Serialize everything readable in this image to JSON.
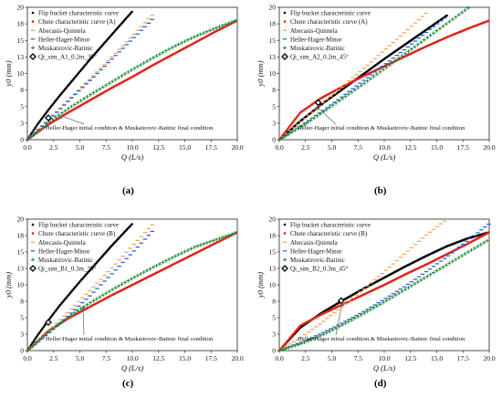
{
  "figure": {
    "panel_labels": [
      "(a)",
      "(b)",
      "(c)",
      "(d)"
    ]
  },
  "colors": {
    "flip": "#000000",
    "chute": "#e2231a",
    "abecasis": "#f2a35c",
    "heller": "#1f5bd1",
    "muskatirovic": "#1f8a3c",
    "qi_sim": "#000000"
  },
  "chart_data": [
    {
      "type": "scatter",
      "panel": "(a)",
      "xlabel": "Q (L/s)",
      "ylabel": "y0 (mm)",
      "xlim": [
        0,
        20
      ],
      "ylim": [
        0,
        20
      ],
      "x_ticks": [
        "0.0",
        "2.5",
        "5.0",
        "7.5",
        "10.0",
        "12.5",
        "15.0",
        "17.5",
        "20.0"
      ],
      "y_ticks": [
        "0",
        "3",
        "5",
        "8",
        "10",
        "13",
        "15",
        "18",
        "20"
      ],
      "grid": false,
      "legend_position": "top-left",
      "annotation": "Heller-Hager initial condition & Muskatirovic-Batinic final condition",
      "annotation_point": [
        3.2,
        3.9
      ],
      "series": [
        {
          "name": "Flip bucket characteristic curve",
          "key": "flip",
          "marker": "dot",
          "x": [
            0,
            1,
            2,
            3,
            4,
            5,
            6,
            7,
            8,
            9,
            10
          ],
          "y": [
            0,
            2.4,
            4.5,
            6.5,
            8.4,
            10.3,
            12.2,
            14.0,
            15.8,
            17.6,
            19.4
          ]
        },
        {
          "name": "Chute characteristic curve (A)",
          "key": "chute",
          "marker": "dot",
          "x": [
            0,
            2,
            4,
            6,
            8,
            10,
            12,
            14,
            16,
            18,
            20
          ],
          "y": [
            0,
            2.3,
            4.2,
            6.0,
            7.8,
            9.5,
            11.3,
            13.0,
            14.7,
            16.4,
            18.0
          ]
        },
        {
          "name": "Abecasis-Quintela",
          "key": "abecasis",
          "marker": "dash",
          "x": [
            0,
            2,
            4,
            6,
            8,
            10,
            12
          ],
          "y": [
            0,
            3.0,
            6.1,
            9.2,
            12.4,
            15.7,
            19.0
          ]
        },
        {
          "name": "Heller-Hager-Minor",
          "key": "heller",
          "marker": "dash",
          "x": [
            0,
            2,
            4,
            6,
            8,
            10,
            12
          ],
          "y": [
            0,
            2.9,
            6.0,
            9.0,
            12.1,
            15.2,
            18.3
          ]
        },
        {
          "name": "Muskatirovic-Batinic",
          "key": "muskatirovic",
          "marker": "plus",
          "x": [
            0,
            2,
            4,
            6,
            8,
            10,
            12,
            14,
            16,
            18,
            20
          ],
          "y": [
            0,
            2.6,
            4.8,
            6.8,
            8.7,
            10.6,
            12.4,
            14.1,
            15.6,
            16.9,
            18.1
          ]
        },
        {
          "name": "Qi_sim_A1_0.2m_30°",
          "key": "qi_sim",
          "marker": "diamond",
          "x": [
            2.0
          ],
          "y": [
            3.3
          ]
        }
      ]
    },
    {
      "type": "scatter",
      "panel": "(b)",
      "xlabel": "Q (L/s)",
      "ylabel": "y0 (mm)",
      "xlim": [
        0,
        20
      ],
      "ylim": [
        0,
        20
      ],
      "x_ticks": [
        "0.0",
        "2.5",
        "5.0",
        "7.5",
        "10.0",
        "12.5",
        "15.0",
        "17.5",
        "20.0"
      ],
      "y_ticks": [
        "0",
        "3",
        "5",
        "8",
        "10",
        "13",
        "15",
        "18",
        "20"
      ],
      "grid": false,
      "legend_position": "top-left",
      "annotation": "Heller-Hager initial condition & Muskatirovic-Batinic final condition",
      "annotation_point": [
        3.6,
        5.2
      ],
      "series": [
        {
          "name": "Flip bucket characteristic curve",
          "key": "flip",
          "marker": "dot",
          "x": [
            0,
            2,
            4,
            6,
            8,
            10,
            12,
            14,
            16
          ],
          "y": [
            0,
            2.8,
            5.3,
            7.6,
            9.9,
            12.2,
            14.4,
            16.6,
            18.8
          ]
        },
        {
          "name": "Chute characteristic curve (A)",
          "key": "chute",
          "marker": "dot",
          "x": [
            0,
            2,
            4,
            6,
            8,
            10,
            12,
            14,
            16,
            18,
            20
          ],
          "y": [
            0,
            4.1,
            6.3,
            8.0,
            9.6,
            11.1,
            12.6,
            14.1,
            15.5,
            16.8,
            18.0
          ]
        },
        {
          "name": "Abecasis-Quintela",
          "key": "abecasis",
          "marker": "dash",
          "x": [
            0,
            2,
            4,
            6,
            8,
            10,
            12,
            14
          ],
          "y": [
            0,
            2.6,
            5.3,
            8.0,
            10.7,
            13.5,
            16.3,
            19.1
          ]
        },
        {
          "name": "Heller-Hager-Minor",
          "key": "heller",
          "marker": "dash",
          "x": [
            0,
            2,
            4,
            6,
            8,
            10,
            12,
            14,
            16
          ],
          "y": [
            0,
            2.0,
            4.2,
            6.5,
            8.9,
            11.3,
            13.7,
            16.2,
            18.7
          ]
        },
        {
          "name": "Muskatirovic-Batinic",
          "key": "muskatirovic",
          "marker": "plus",
          "x": [
            0,
            2,
            4,
            6,
            8,
            10,
            12,
            14,
            16,
            18
          ],
          "y": [
            0,
            1.9,
            4.0,
            6.2,
            8.4,
            10.7,
            13.0,
            15.3,
            17.6,
            19.9
          ]
        },
        {
          "name": "Qi_sim_A2_0.2m_45°",
          "key": "qi_sim",
          "marker": "diamond",
          "x": [
            3.7
          ],
          "y": [
            5.6
          ]
        }
      ]
    },
    {
      "type": "scatter",
      "panel": "(c)",
      "xlabel": "Q (L/s)",
      "ylabel": "y0 (mm)",
      "xlim": [
        0,
        20
      ],
      "ylim": [
        0,
        20
      ],
      "x_ticks": [
        "0.0",
        "2.5",
        "5.0",
        "7.5",
        "10.0",
        "12.5",
        "15.0",
        "17.5",
        "20.0"
      ],
      "y_ticks": [
        "0",
        "3",
        "5",
        "8",
        "10",
        "13",
        "15",
        "18",
        "20"
      ],
      "grid": false,
      "legend_position": "top-left",
      "annotation": "Heller-Hager initial condition & Muskatirovic-Batinic final condition",
      "annotation_point": [
        5.3,
        7.0
      ],
      "series": [
        {
          "name": "Flip bucket characteristic curve",
          "key": "flip",
          "marker": "dot",
          "x": [
            0,
            1,
            2,
            3,
            4,
            5,
            6,
            7,
            8,
            9,
            10
          ],
          "y": [
            0,
            2.4,
            4.6,
            6.7,
            8.6,
            10.5,
            12.3,
            14.1,
            15.9,
            17.6,
            19.3
          ]
        },
        {
          "name": "Chute characteristic curve (B)",
          "key": "chute",
          "marker": "dot",
          "x": [
            0,
            2,
            4,
            6,
            8,
            10,
            12,
            14,
            16,
            18,
            20
          ],
          "y": [
            0,
            3.0,
            5.0,
            6.7,
            8.4,
            10.0,
            11.6,
            13.2,
            14.8,
            16.4,
            18.0
          ]
        },
        {
          "name": "Abecasis-Quintela",
          "key": "abecasis",
          "marker": "dash",
          "x": [
            0,
            2,
            4,
            6,
            8,
            10,
            12
          ],
          "y": [
            0,
            2.9,
            6.0,
            9.2,
            12.5,
            15.9,
            19.3
          ]
        },
        {
          "name": "Heller-Hager-Minor",
          "key": "heller",
          "marker": "dash",
          "x": [
            0,
            2,
            4,
            6,
            8,
            10,
            12
          ],
          "y": [
            0,
            2.6,
            5.4,
            8.4,
            11.6,
            14.9,
            18.3
          ]
        },
        {
          "name": "Muskatirovic-Batinic",
          "key": "muskatirovic",
          "marker": "plus",
          "x": [
            0,
            2,
            4,
            6,
            8,
            10,
            12,
            14,
            16,
            18,
            20
          ],
          "y": [
            0,
            2.8,
            5.2,
            7.3,
            9.2,
            11.0,
            12.7,
            14.3,
            15.8,
            16.9,
            18.0
          ]
        },
        {
          "name": "Qi_sim_B1_0.3m_30°",
          "key": "qi_sim",
          "marker": "diamond",
          "x": [
            2.0
          ],
          "y": [
            4.3
          ]
        }
      ]
    },
    {
      "type": "scatter",
      "panel": "(d)",
      "xlabel": "Q (L/s)",
      "ylabel": "y0 (mm)",
      "xlim": [
        0,
        20
      ],
      "ylim": [
        0,
        20
      ],
      "x_ticks": [
        "0.0",
        "2.5",
        "5.0",
        "7.5",
        "10.0",
        "12.5",
        "15.0",
        "17.5",
        "20.0"
      ],
      "y_ticks": [
        "0",
        "3",
        "5",
        "8",
        "10",
        "13",
        "15",
        "18",
        "20"
      ],
      "grid": false,
      "legend_position": "top-left",
      "annotation": "Heller-Hager initial condition & Muskatirovic-Batinic final condition",
      "annotation_point": [
        6.0,
        7.5
      ],
      "series": [
        {
          "name": "Flip bucket characteristic curve",
          "key": "flip",
          "marker": "dot",
          "x": [
            0,
            2,
            4,
            6,
            8,
            10,
            12,
            14,
            16,
            18,
            20
          ],
          "y": [
            0,
            3.5,
            5.7,
            7.6,
            9.4,
            11.1,
            12.8,
            14.4,
            15.9,
            17.1,
            18.0
          ]
        },
        {
          "name": "Chute characteristic curve (B)",
          "key": "chute",
          "marker": "dot",
          "x": [
            0,
            2,
            4,
            6,
            8,
            10,
            12,
            14,
            16,
            18,
            20
          ],
          "y": [
            0,
            3.8,
            5.5,
            7.0,
            8.5,
            10.0,
            11.6,
            13.1,
            14.7,
            16.3,
            18.0
          ]
        },
        {
          "name": "Abecasis-Quintela",
          "key": "abecasis",
          "marker": "dash",
          "x": [
            0,
            2,
            4,
            6,
            8,
            10,
            12,
            14,
            16
          ],
          "y": [
            0,
            1.9,
            4.2,
            6.7,
            9.3,
            12.0,
            14.8,
            17.6,
            20.0
          ]
        },
        {
          "name": "Heller-Hager-Minor",
          "key": "heller",
          "marker": "dash",
          "x": [
            0,
            2,
            4,
            6,
            8,
            10,
            12,
            14,
            16,
            18,
            20
          ],
          "y": [
            0,
            1.2,
            2.6,
            4.2,
            5.9,
            7.8,
            9.8,
            12.0,
            14.3,
            16.8,
            19.3
          ]
        },
        {
          "name": "Muskatirovic-Batinic",
          "key": "muskatirovic",
          "marker": "plus",
          "x": [
            0,
            2,
            4,
            6,
            8,
            10,
            12,
            14,
            16,
            18,
            20
          ],
          "y": [
            0,
            1.0,
            2.3,
            3.9,
            5.6,
            7.4,
            9.3,
            11.2,
            13.1,
            15.0,
            16.9
          ]
        },
        {
          "name": "Qi_sim_B2_0.3m_45°",
          "key": "qi_sim",
          "marker": "diamond",
          "x": [
            5.9
          ],
          "y": [
            7.6
          ]
        }
      ]
    }
  ]
}
